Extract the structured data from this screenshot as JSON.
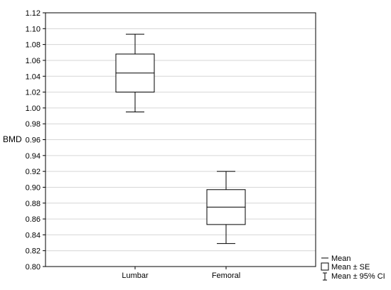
{
  "chart_data": {
    "type": "box",
    "ylabel": "BMD",
    "ylim": [
      0.8,
      1.12
    ],
    "y_ticks": [
      "0.80",
      "0.82",
      "0.84",
      "0.86",
      "0.88",
      "0.90",
      "0.92",
      "0.94",
      "0.96",
      "0.98",
      "1.00",
      "1.02",
      "1.04",
      "1.06",
      "1.08",
      "1.10",
      "1.12"
    ],
    "grid": true,
    "categories": [
      "Lumbar",
      "Femoral"
    ],
    "boxes": [
      {
        "category": "Lumbar",
        "mean": 1.044,
        "se_low": 1.02,
        "se_high": 1.068,
        "ci_low": 0.995,
        "ci_high": 1.093
      },
      {
        "category": "Femoral",
        "mean": 0.875,
        "se_low": 0.853,
        "se_high": 0.897,
        "ci_low": 0.829,
        "ci_high": 0.92
      }
    ],
    "legend": {
      "position": "bottom-right",
      "entries": [
        "Mean",
        "Mean ± SE",
        "Mean ± 95% CI"
      ]
    }
  },
  "colors": {
    "grid": "#d6d6d6",
    "stroke": "#000000",
    "background": "#ffffff"
  }
}
